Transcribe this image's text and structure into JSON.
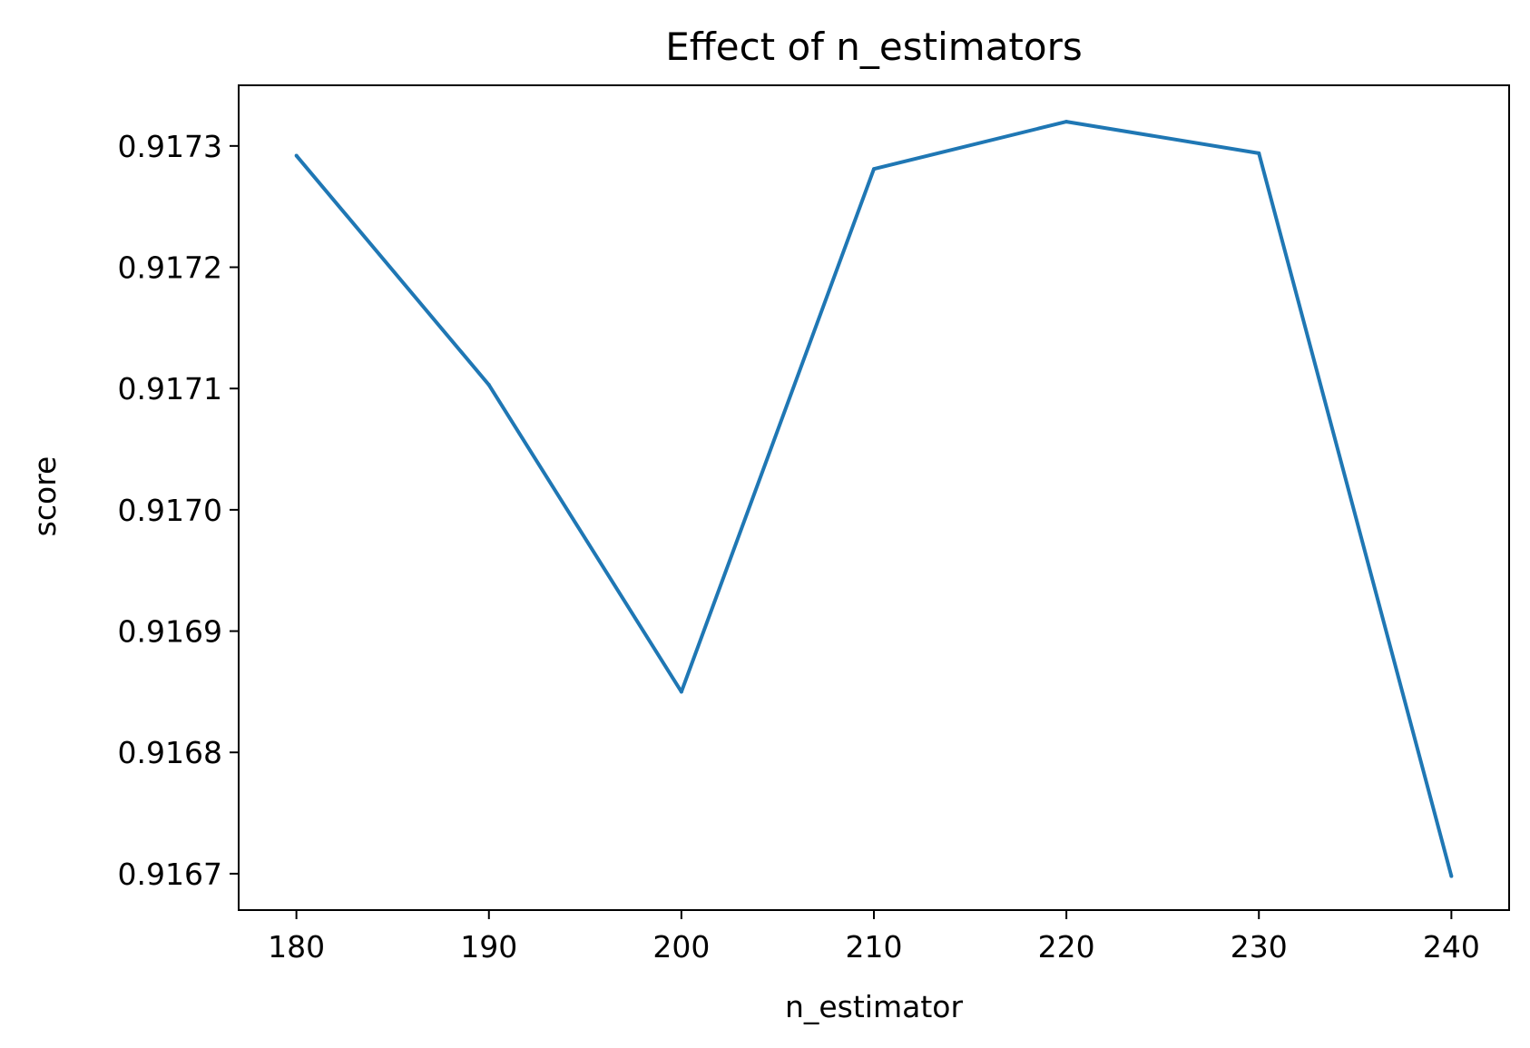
{
  "chart_data": {
    "type": "line",
    "title": "Effect of n_estimators",
    "xlabel": "n_estimator",
    "ylabel": "score",
    "x": [
      180,
      190,
      200,
      210,
      220,
      230,
      240
    ],
    "series": [
      {
        "values": [
          0.917292,
          0.917103,
          0.91685,
          0.917281,
          0.91732,
          0.917294,
          0.916698
        ]
      }
    ],
    "xlim": [
      177,
      243
    ],
    "ylim": [
      0.91667,
      0.91735
    ],
    "xticks": [
      180,
      190,
      200,
      210,
      220,
      230,
      240
    ],
    "xtick_labels": [
      "180",
      "190",
      "200",
      "210",
      "220",
      "230",
      "240"
    ],
    "yticks": [
      0.9167,
      0.9168,
      0.9169,
      0.917,
      0.9171,
      0.9172,
      0.9173
    ],
    "ytick_labels": [
      "0.9167",
      "0.9168",
      "0.9169",
      "0.9170",
      "0.9171",
      "0.9172",
      "0.9173"
    ],
    "grid": false,
    "line_color": "#1f77b4"
  }
}
